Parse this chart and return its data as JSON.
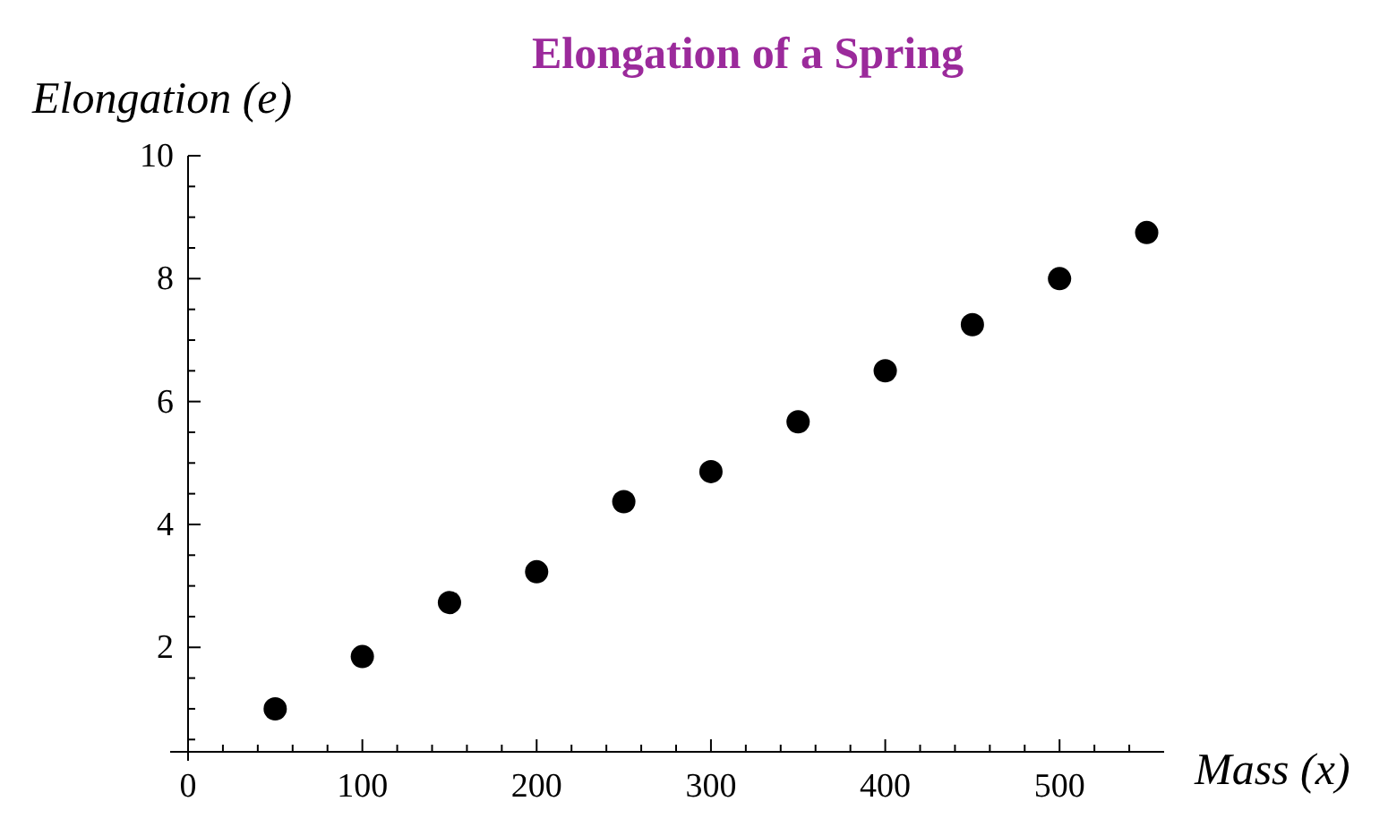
{
  "chart_data": {
    "type": "scatter",
    "title": "Elongation of a Spring",
    "xlabel": "Mass (x)",
    "ylabel": "Elongation (e)",
    "x": [
      50,
      100,
      150,
      200,
      250,
      300,
      350,
      400,
      450,
      500,
      550
    ],
    "series": [
      {
        "color": "#000000",
        "values": [
          1.0,
          1.85,
          2.73,
          3.23,
          4.37,
          4.86,
          5.67,
          6.5,
          7.25,
          8.0,
          8.75
        ]
      }
    ],
    "xlim": [
      0,
      560
    ],
    "ylim": [
      0.3,
      10
    ],
    "xticks": [
      0,
      {
        "value": 20,
        "label": null
      },
      {
        "value": 40,
        "label": null
      },
      {
        "value": 60,
        "label": null
      },
      {
        "value": 80,
        "label": null
      },
      100,
      {
        "value": 120,
        "label": null
      },
      {
        "value": 140,
        "label": null
      },
      {
        "value": 160,
        "label": null
      },
      {
        "value": 180,
        "label": null
      },
      200,
      {
        "value": 220,
        "label": null
      },
      {
        "value": 240,
        "label": null
      },
      {
        "value": 260,
        "label": null
      },
      {
        "value": 280,
        "label": null
      },
      300,
      {
        "value": 320,
        "label": null
      },
      {
        "value": 340,
        "label": null
      },
      {
        "value": 360,
        "label": null
      },
      {
        "value": 380,
        "label": null
      },
      400,
      {
        "value": 420,
        "label": null
      },
      {
        "value": 440,
        "label": null
      },
      {
        "value": 460,
        "label": null
      },
      {
        "value": 480,
        "label": null
      },
      500,
      {
        "value": 520,
        "label": null
      },
      {
        "value": 540,
        "label": null
      }
    ],
    "yticks": [
      {
        "value": 0.5,
        "label": null
      },
      {
        "value": 1,
        "label": null
      },
      {
        "value": 1.5,
        "label": null
      },
      2,
      {
        "value": 2.5,
        "label": null
      },
      {
        "value": 3,
        "label": null
      },
      {
        "value": 3.5,
        "label": null
      },
      4,
      {
        "value": 4.5,
        "label": null
      },
      {
        "value": 5,
        "label": null
      },
      {
        "value": 5.5,
        "label": null
      },
      6,
      {
        "value": 6.5,
        "label": null
      },
      {
        "value": 7,
        "label": null
      },
      {
        "value": 7.5,
        "label": null
      },
      8,
      {
        "value": 8.5,
        "label": null
      },
      {
        "value": 9,
        "label": null
      },
      {
        "value": 9.5,
        "label": null
      },
      10
    ],
    "marker": "circle"
  }
}
